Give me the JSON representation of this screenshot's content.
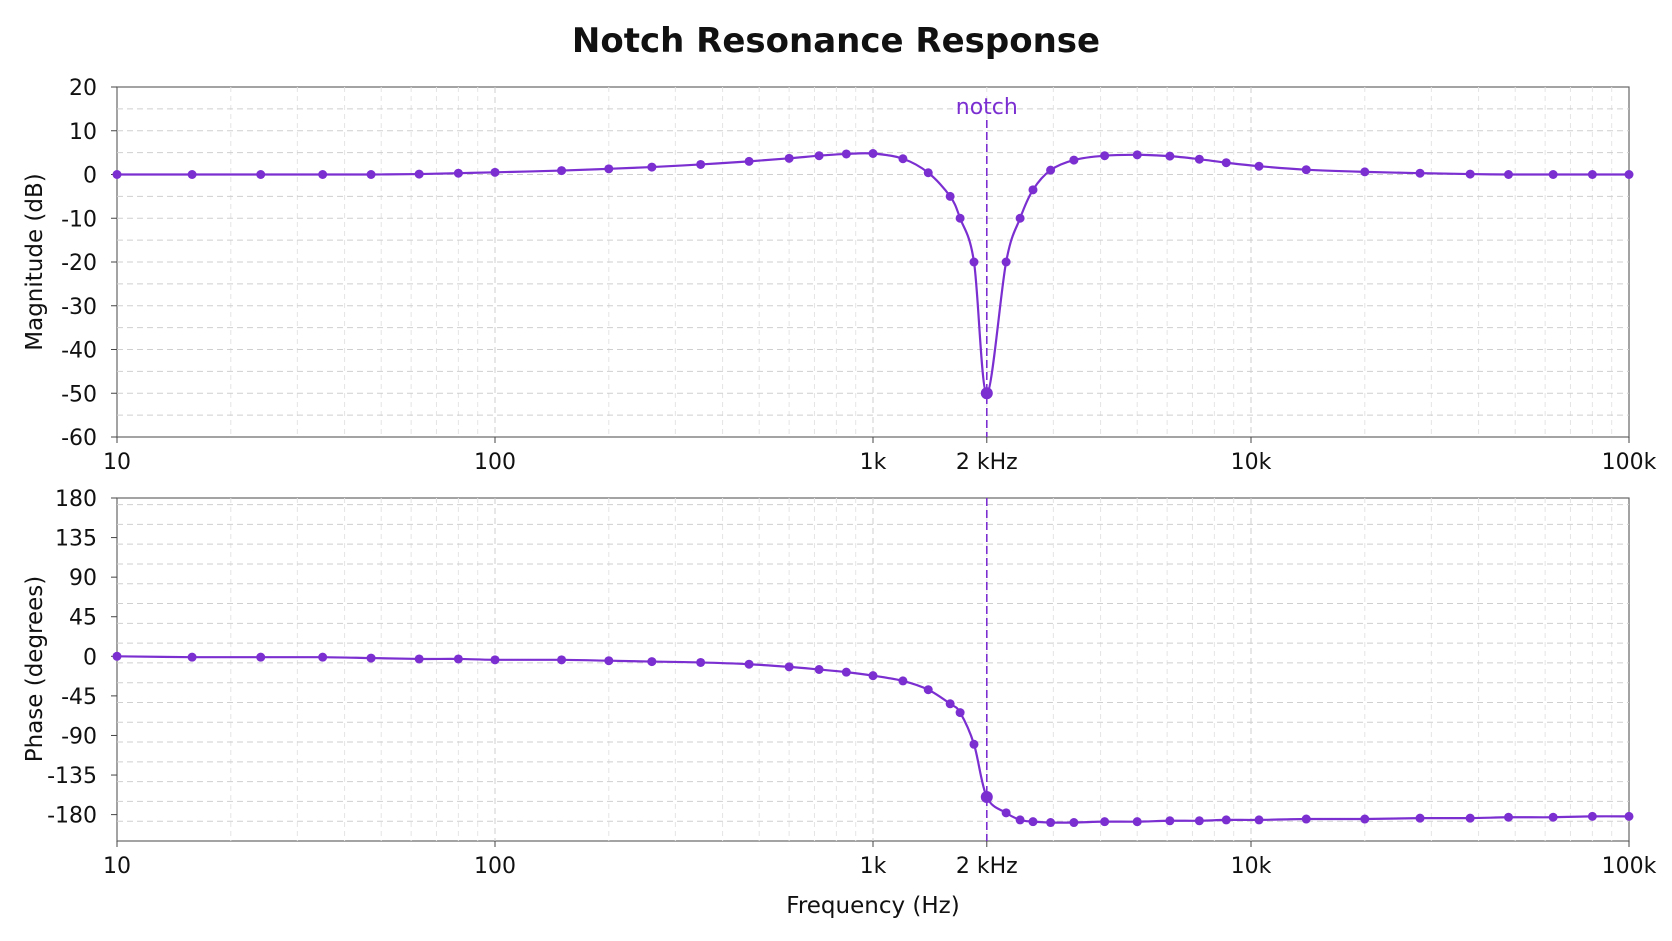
{
  "chart_data": {
    "type": "line",
    "title": "Notch Resonance Response",
    "xlabel": "Frequency (Hz)",
    "xscale": "log",
    "xlim": [
      10,
      100000
    ],
    "x_ticks": [
      10,
      100,
      1000,
      2000,
      10000,
      100000
    ],
    "x_tick_labels": [
      "10",
      "100",
      "1k",
      "2 kHz",
      "10k",
      "100k"
    ],
    "color": "#7b2fd1",
    "grid": true,
    "marker": {
      "label": "notch",
      "x": 2000
    },
    "x": [
      10,
      15.8,
      24,
      35,
      47,
      63,
      80,
      100,
      150,
      200,
      260,
      350,
      470,
      600,
      720,
      850,
      1000,
      1200,
      1400,
      1600,
      1700,
      1850,
      2000,
      2250,
      2450,
      2650,
      2950,
      3400,
      4100,
      5000,
      6100,
      7300,
      8600,
      10500,
      14000,
      20000,
      28000,
      38000,
      48000,
      63000,
      80000,
      100000
    ],
    "panels": [
      {
        "ylabel": "Magnitude (dB)",
        "ylim": [
          -60,
          20
        ],
        "y_ticks": [
          20,
          10,
          0,
          -10,
          -20,
          -30,
          -40,
          -50,
          -60
        ],
        "series": [
          {
            "values": [
              0,
              0,
              0,
              0,
              0,
              0.1,
              0.3,
              0.5,
              0.9,
              1.3,
              1.7,
              2.3,
              3.0,
              3.7,
              4.3,
              4.7,
              4.8,
              3.6,
              0.4,
              -5,
              -10,
              -20,
              -50,
              -20,
              -10,
              -3.5,
              1,
              3.3,
              4.3,
              4.5,
              4.2,
              3.5,
              2.7,
              1.9,
              1.1,
              0.6,
              0.3,
              0.1,
              0,
              0,
              0,
              0
            ]
          }
        ]
      },
      {
        "ylabel": "Phase (degrees)",
        "ylim": [
          -210,
          180
        ],
        "y_ticks": [
          180,
          135,
          90,
          45,
          0,
          -45,
          -90,
          -135,
          -180
        ],
        "series": [
          {
            "values": [
              0,
              -1,
              -1,
              -1,
              -2,
              -3,
              -3,
              -4,
              -4,
              -5,
              -6,
              -7,
              -9,
              -12,
              -15,
              -18,
              -22,
              -28,
              -38,
              -54,
              -64,
              -100,
              -160,
              -178,
              -186,
              -188,
              -189,
              -189,
              -188,
              -188,
              -187,
              -187,
              -186,
              -186,
              -185,
              -185,
              -184,
              -184,
              -183,
              -183,
              -182,
              -182
            ]
          }
        ]
      }
    ]
  }
}
